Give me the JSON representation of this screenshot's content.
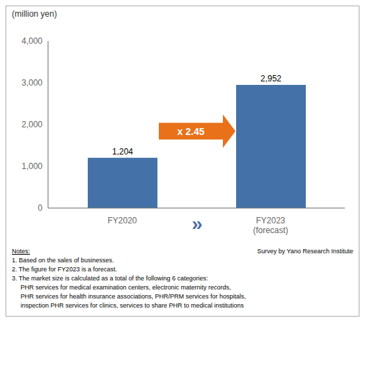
{
  "chart_data": {
    "type": "bar",
    "categories": [
      "FY2020",
      "FY2023\n(forecast)"
    ],
    "values": [
      1204,
      2952
    ],
    "value_labels": [
      "1,204",
      "2,952"
    ],
    "data_labels": true,
    "color": "#4472a8",
    "ylabel": "(million  yen)",
    "ylim": [
      0,
      4000
    ],
    "yticks": [
      0,
      {
        "value": 1000,
        "label": "1,000"
      },
      {
        "value": 2000,
        "label": "2,000"
      },
      {
        "value": 3000,
        "label": "3,000"
      },
      {
        "value": 4000,
        "label": "4,000"
      }
    ],
    "grid": false,
    "annotations": [
      {
        "text": "x 2.45",
        "color": "#ffffff",
        "fill": "#E8711A"
      },
      {
        "text": "»",
        "color": "#4a6fa5"
      }
    ],
    "notes": [
      "Notes:",
      "1. Based on the sales of businesses.",
      "2. The figure for FY2023 is a forecast.",
      "3. The market size is calculated as a total of the following 6 categories:",
      "     PHR services for medical examination centers, electronic maternity records,",
      "     PHR services for health insurance associations, PHR/PRM services for hospitals,",
      "     inspection PHR services for clinics, services to share PHR to medical institutions"
    ],
    "source": "Survey by Yano Research Institute"
  }
}
